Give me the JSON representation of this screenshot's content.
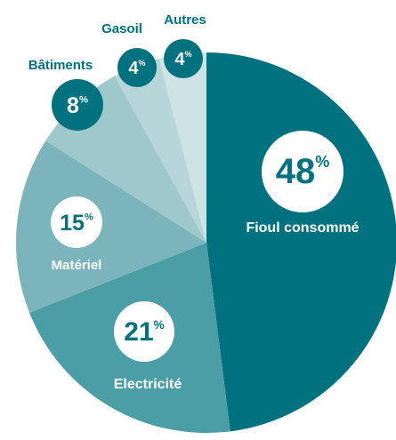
{
  "chart_data": {
    "type": "pie",
    "categories": [
      "Fioul consommé",
      "Electricité",
      "Matériel",
      "Bâtiments",
      "Gasoil",
      "Autres"
    ],
    "values": [
      48,
      21,
      15,
      8,
      4,
      4
    ],
    "value_labels": [
      "48%",
      "21%",
      "15%",
      "8%",
      "4%",
      "4%"
    ],
    "colors": [
      "#00717e",
      "#4b9ea6",
      "#7bb5bb",
      "#9fc8cc",
      "#b7d6d9",
      "#cfe3e5"
    ]
  }
}
